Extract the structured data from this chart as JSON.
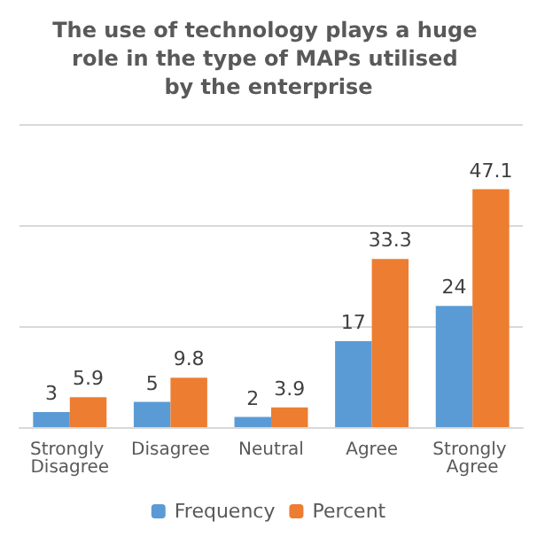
{
  "chart_data": {
    "type": "bar",
    "title": "The use of technology plays a huge role in the type of MAPs utilised by the enterprise",
    "categories": [
      "Strongly Disagree",
      "Disagree",
      "Neutral",
      "Agree",
      "Strongly Agree"
    ],
    "series": [
      {
        "name": "Frequency",
        "color": "#5b9bd5",
        "values": [
          3,
          5,
          2,
          17,
          24
        ]
      },
      {
        "name": "Percent",
        "color": "#ed7d31",
        "values": [
          5.9,
          9.8,
          3.9,
          33.3,
          47.1
        ]
      }
    ],
    "ylim": [
      0,
      60
    ],
    "yticks": [
      {
        "value": 0,
        "label": null
      },
      {
        "value": 20,
        "label": null
      },
      {
        "value": 40,
        "label": null
      },
      {
        "value": 60,
        "label": null
      }
    ],
    "grid": "y",
    "legend": "bottom",
    "data_labels": true
  }
}
